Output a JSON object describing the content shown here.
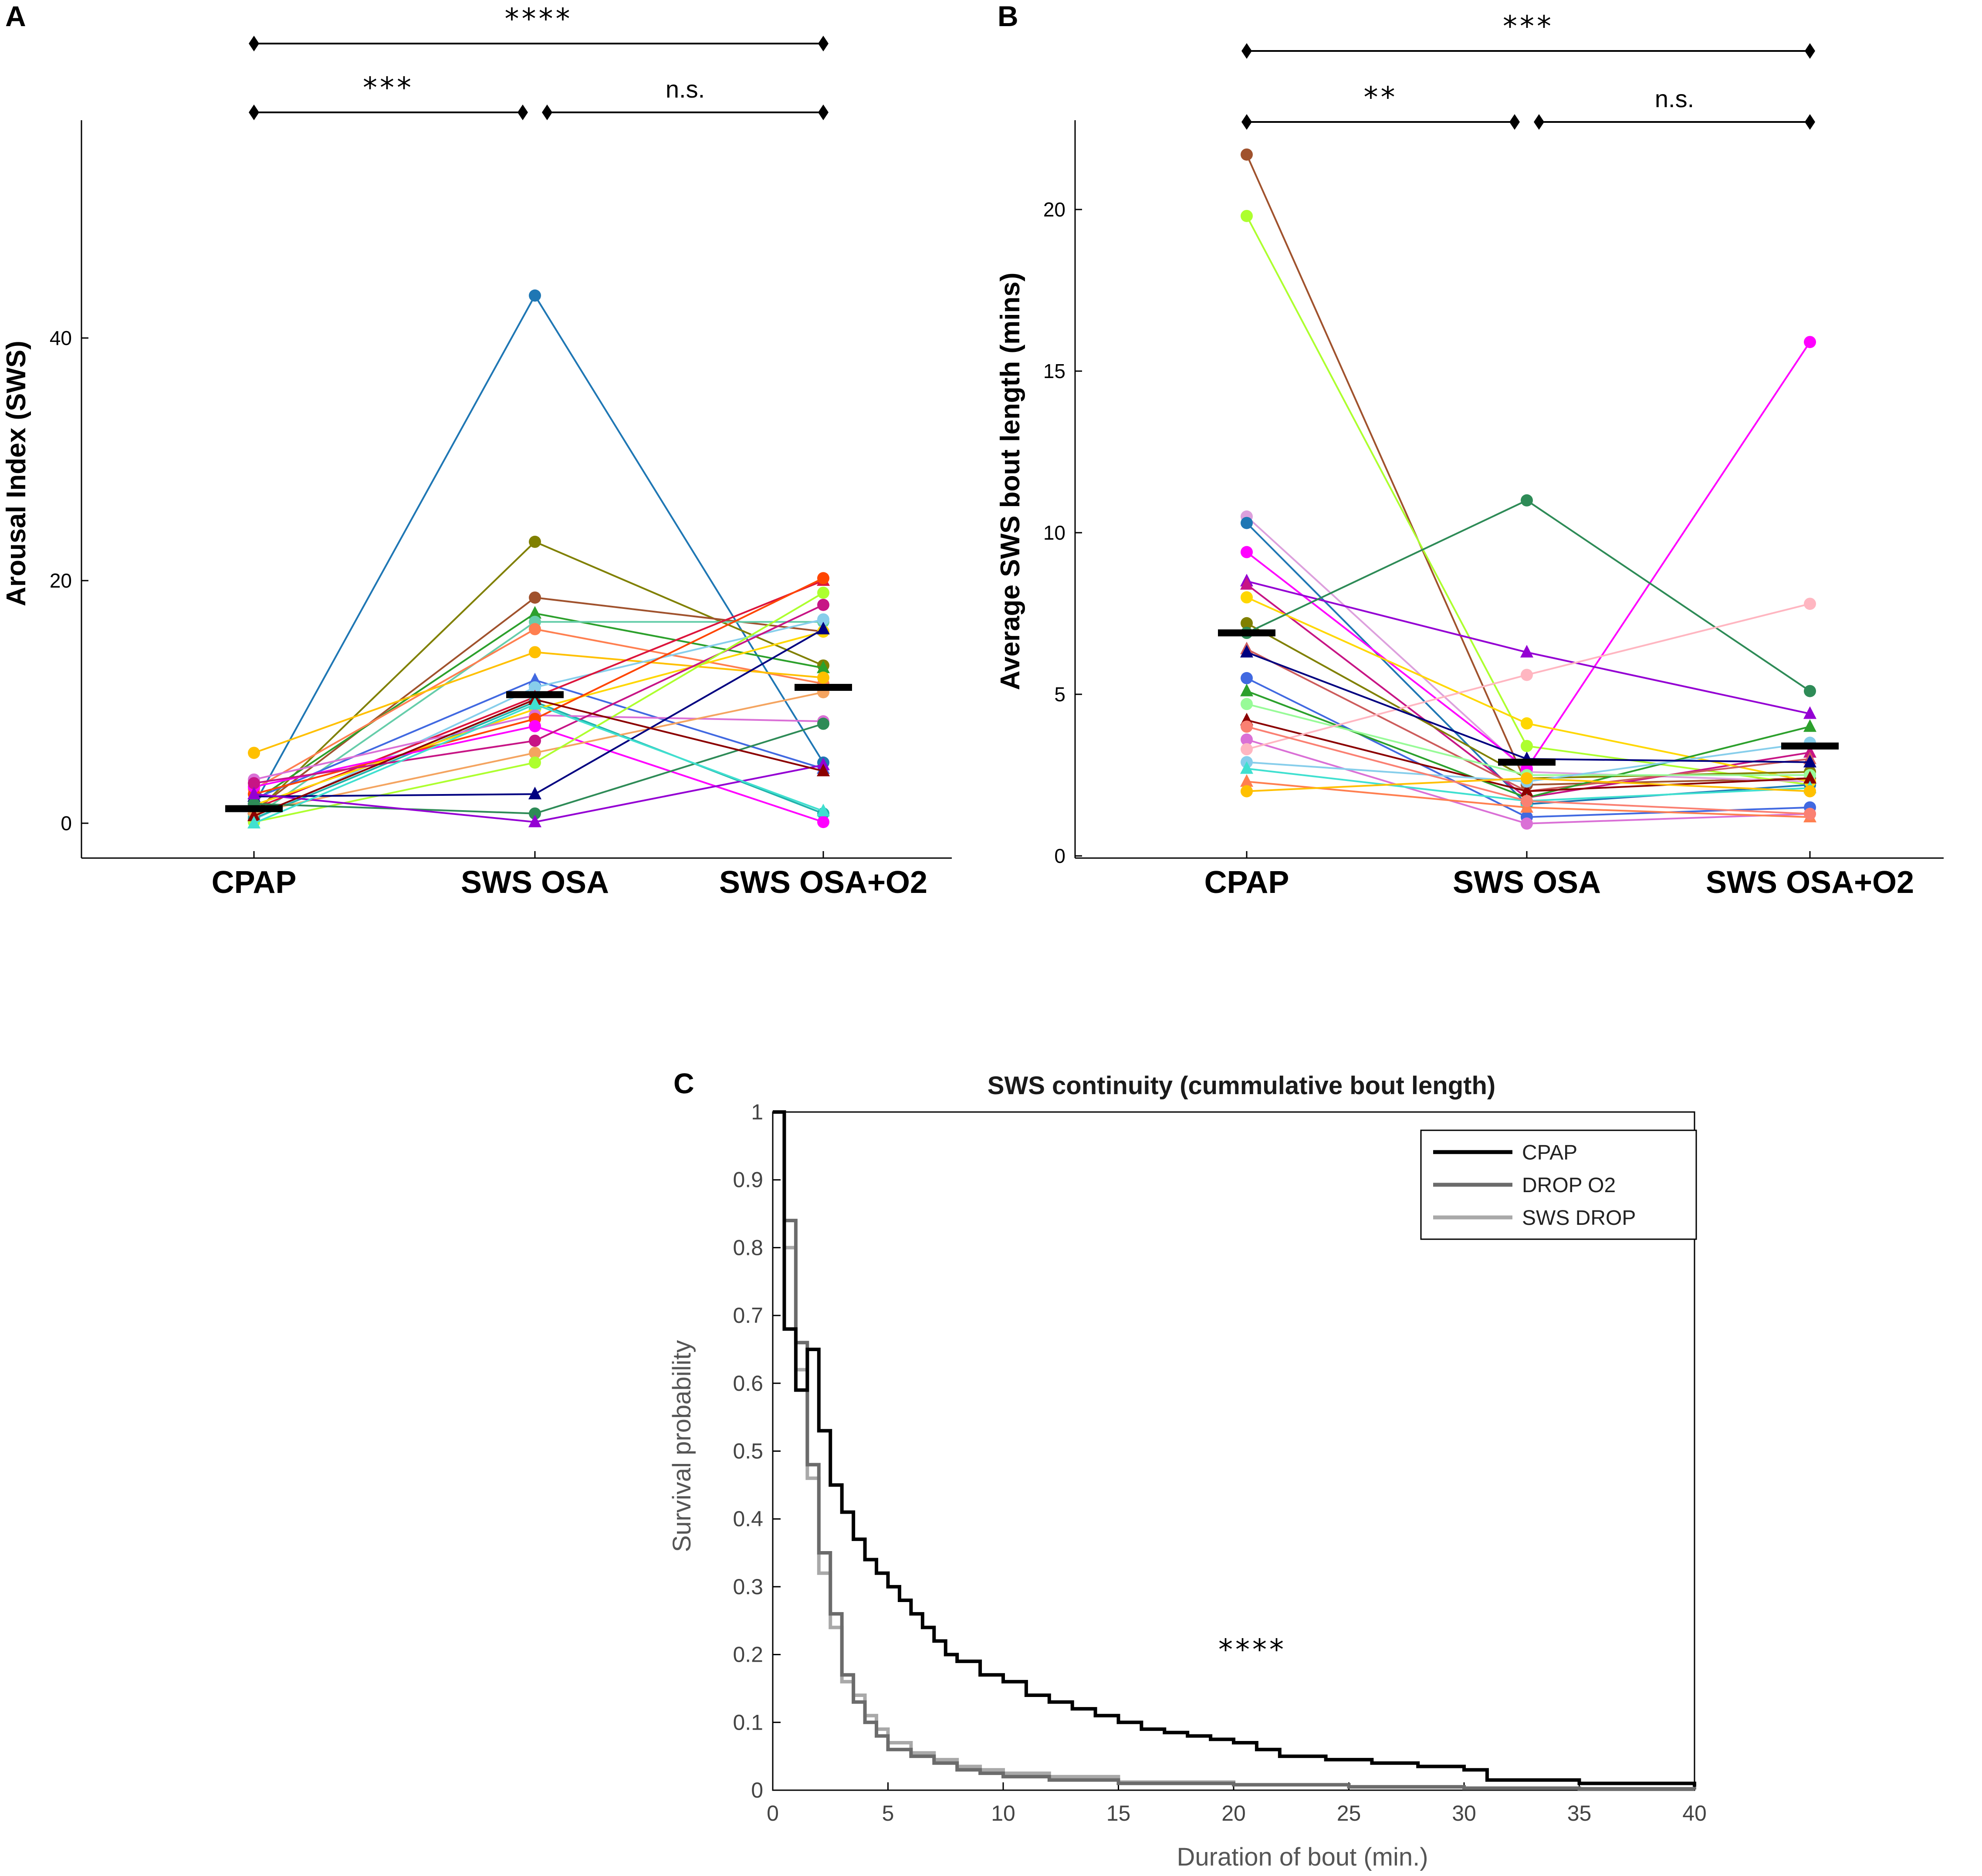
{
  "chart_data": [
    {
      "panel": "A",
      "type": "line",
      "title": "",
      "ylabel": "Arousal Index (SWS)",
      "xlabel": "",
      "categories": [
        "CPAP",
        "SWS OSA",
        "SWS OSA+O2"
      ],
      "yticks": [
        0,
        20,
        40
      ],
      "ylim": [
        -3,
        57
      ],
      "medians": [
        1.2,
        10.6,
        11.2
      ],
      "significance": [
        {
          "from": 0,
          "to": 2,
          "label": "****"
        },
        {
          "from": 0,
          "to": 1,
          "label": "***"
        },
        {
          "from": 1,
          "to": 2,
          "label": "n.s."
        }
      ],
      "series": [
        {
          "color": "#1f77b4",
          "marker": "circle",
          "values": [
            1.5,
            43.5,
            5.0
          ]
        },
        {
          "color": "#808000",
          "marker": "circle",
          "values": [
            0.8,
            23.2,
            13.0
          ]
        },
        {
          "color": "#a0522d",
          "marker": "circle",
          "values": [
            1.0,
            18.6,
            15.8
          ]
        },
        {
          "color": "#2ca02c",
          "marker": "triangle",
          "values": [
            1.8,
            17.3,
            12.8
          ]
        },
        {
          "color": "#66cdaa",
          "marker": "circle",
          "values": [
            0.5,
            16.6,
            16.6
          ]
        },
        {
          "color": "#ff7f50",
          "marker": "circle",
          "values": [
            2.8,
            16.0,
            11.5
          ]
        },
        {
          "color": "#ffc000",
          "marker": "circle",
          "values": [
            5.8,
            14.1,
            12.0
          ]
        },
        {
          "color": "#4169e1",
          "marker": "triangle",
          "values": [
            2.0,
            11.8,
            4.5
          ]
        },
        {
          "color": "#87ceeb",
          "marker": "circle",
          "values": [
            0.3,
            11.2,
            16.8
          ]
        },
        {
          "color": "#dc143c",
          "marker": "triangle",
          "values": [
            1.2,
            10.4,
            20.0
          ]
        },
        {
          "color": "#20b2aa",
          "marker": "circle",
          "values": [
            0.4,
            10.0,
            0.8
          ]
        },
        {
          "color": "#ffd700",
          "marker": "circle",
          "values": [
            1.5,
            9.4,
            15.8
          ]
        },
        {
          "color": "#da70d6",
          "marker": "circle",
          "values": [
            3.6,
            8.9,
            8.4
          ]
        },
        {
          "color": "#ff4500",
          "marker": "circle",
          "values": [
            2.4,
            8.6,
            20.2
          ]
        },
        {
          "color": "#ff00ff",
          "marker": "circle",
          "values": [
            3.0,
            8.0,
            0.1
          ]
        },
        {
          "color": "#c71585",
          "marker": "circle",
          "values": [
            3.3,
            6.8,
            18.0
          ]
        },
        {
          "color": "#f4a460",
          "marker": "circle",
          "values": [
            0.9,
            5.8,
            10.8
          ]
        },
        {
          "color": "#adff2f",
          "marker": "circle",
          "values": [
            0.1,
            5.0,
            19.0
          ]
        },
        {
          "color": "#000080",
          "marker": "triangle",
          "values": [
            2.2,
            2.4,
            16.0
          ]
        },
        {
          "color": "#2e8b57",
          "marker": "circle",
          "values": [
            1.6,
            0.8,
            8.2
          ]
        },
        {
          "color": "#9400d3",
          "marker": "triangle",
          "values": [
            2.4,
            0.1,
            4.8
          ]
        },
        {
          "color": "#8b0000",
          "marker": "triangle",
          "values": [
            0.6,
            10.2,
            4.3
          ]
        },
        {
          "color": "#40e0d0",
          "marker": "triangle",
          "values": [
            0.0,
            9.8,
            1.0
          ]
        }
      ]
    },
    {
      "panel": "B",
      "type": "line",
      "title": "",
      "ylabel": "Average SWS bout length (mins)",
      "xlabel": "",
      "categories": [
        "CPAP",
        "SWS OSA",
        "SWS OSA+O2"
      ],
      "yticks": [
        0,
        5,
        10,
        15,
        20
      ],
      "ylim": [
        0,
        22.7
      ],
      "medians": [
        6.9,
        2.9,
        3.4
      ],
      "significance": [
        {
          "from": 0,
          "to": 2,
          "label": "***"
        },
        {
          "from": 0,
          "to": 1,
          "label": "**"
        },
        {
          "from": 1,
          "to": 2,
          "label": "n.s."
        }
      ],
      "series": [
        {
          "color": "#a0522d",
          "marker": "circle",
          "values": [
            21.7,
            2.2,
            2.4
          ]
        },
        {
          "color": "#adff2f",
          "marker": "circle",
          "values": [
            19.8,
            3.4,
            2.2
          ]
        },
        {
          "color": "#dda0dd",
          "marker": "circle",
          "values": [
            10.5,
            2.6,
            2.3
          ]
        },
        {
          "color": "#1f77b4",
          "marker": "circle",
          "values": [
            10.3,
            1.6,
            2.2
          ]
        },
        {
          "color": "#ff00ff",
          "marker": "circle",
          "values": [
            9.4,
            2.7,
            15.9
          ]
        },
        {
          "color": "#9400d3",
          "marker": "triangle",
          "values": [
            8.5,
            6.3,
            4.4
          ]
        },
        {
          "color": "#c71585",
          "marker": "triangle",
          "values": [
            8.4,
            1.8,
            3.2
          ]
        },
        {
          "color": "#ffd700",
          "marker": "circle",
          "values": [
            8.0,
            4.1,
            2.3
          ]
        },
        {
          "color": "#808000",
          "marker": "circle",
          "values": [
            7.2,
            2.4,
            2.6
          ]
        },
        {
          "color": "#2e8b57",
          "marker": "circle",
          "values": [
            6.9,
            11.0,
            5.1
          ]
        },
        {
          "color": "#cd5c5c",
          "marker": "triangle",
          "values": [
            6.4,
            2.0,
            3.0
          ]
        },
        {
          "color": "#4169e1",
          "marker": "circle",
          "values": [
            5.5,
            1.2,
            1.5
          ]
        },
        {
          "color": "#2ca02c",
          "marker": "triangle",
          "values": [
            5.1,
            1.8,
            4.0
          ]
        },
        {
          "color": "#98fb98",
          "marker": "circle",
          "values": [
            4.7,
            2.5,
            2.5
          ]
        },
        {
          "color": "#8b0000",
          "marker": "triangle",
          "values": [
            4.2,
            2.0,
            2.4
          ]
        },
        {
          "color": "#da70d6",
          "marker": "circle",
          "values": [
            3.6,
            1.0,
            1.3
          ]
        },
        {
          "color": "#ffb6c1",
          "marker": "circle",
          "values": [
            3.3,
            5.6,
            7.8
          ]
        },
        {
          "color": "#87ceeb",
          "marker": "circle",
          "values": [
            2.9,
            2.3,
            3.5
          ]
        },
        {
          "color": "#40e0d0",
          "marker": "triangle",
          "values": [
            2.7,
            1.7,
            2.1
          ]
        },
        {
          "color": "#ff7f50",
          "marker": "triangle",
          "values": [
            2.3,
            1.5,
            1.2
          ]
        },
        {
          "color": "#ffc000",
          "marker": "circle",
          "values": [
            2.0,
            2.4,
            2.0
          ]
        },
        {
          "color": "#000080",
          "marker": "triangle",
          "values": [
            6.3,
            3.0,
            2.9
          ]
        },
        {
          "color": "#fa8072",
          "marker": "circle",
          "values": [
            4.0,
            1.7,
            1.3
          ]
        }
      ]
    },
    {
      "panel": "C",
      "type": "line",
      "step": true,
      "title": "SWS continuity (cummulative bout length)",
      "xlabel": "Duration of bout (min.)",
      "ylabel": "Survival probability",
      "xlim": [
        0,
        40
      ],
      "ylim": [
        0,
        1
      ],
      "xticks": [
        0,
        5,
        10,
        15,
        20,
        25,
        30,
        35,
        40
      ],
      "yticks": [
        0,
        0.1,
        0.2,
        0.3,
        0.4,
        0.5,
        0.6,
        0.7,
        0.8,
        0.9,
        1
      ],
      "ytick_labels": [
        "0",
        "0.1",
        "0.2",
        "0.3",
        "0.4",
        "0.5",
        "0.6",
        "0.7",
        "0.8",
        "0.9",
        "1"
      ],
      "annotation": "****",
      "legend_position": "top-right",
      "series": [
        {
          "name": "CPAP",
          "color": "#000000",
          "x": [
            0,
            0.5,
            1.0,
            1.5,
            2.0,
            2.5,
            3.0,
            3.5,
            4.0,
            4.5,
            5.0,
            5.5,
            6.0,
            6.5,
            7.0,
            7.5,
            8.0,
            9.0,
            10.0,
            11.0,
            12.0,
            13.0,
            14.0,
            15.0,
            16.0,
            17.0,
            18.0,
            19.0,
            20.0,
            21.0,
            22.0,
            24.0,
            26.0,
            28.0,
            30.0,
            31.0,
            35.0,
            40.0
          ],
          "y": [
            1.0,
            0.68,
            0.59,
            0.65,
            0.53,
            0.45,
            0.41,
            0.37,
            0.34,
            0.32,
            0.3,
            0.28,
            0.26,
            0.24,
            0.22,
            0.2,
            0.19,
            0.17,
            0.16,
            0.14,
            0.13,
            0.12,
            0.11,
            0.1,
            0.09,
            0.085,
            0.08,
            0.075,
            0.07,
            0.06,
            0.05,
            0.045,
            0.04,
            0.035,
            0.03,
            0.015,
            0.01,
            0.005
          ]
        },
        {
          "name": "DROP O2",
          "color": "#6b6b6b",
          "x": [
            0,
            0.5,
            1.0,
            1.5,
            2.0,
            2.5,
            3.0,
            3.5,
            4.0,
            4.5,
            5.0,
            6.0,
            7.0,
            8.0,
            9.0,
            10.0,
            12.0,
            15.0,
            20.0,
            25.0,
            30.0,
            35.0,
            40.0
          ],
          "y": [
            1.0,
            0.84,
            0.66,
            0.48,
            0.35,
            0.26,
            0.17,
            0.13,
            0.1,
            0.08,
            0.06,
            0.05,
            0.04,
            0.03,
            0.025,
            0.02,
            0.015,
            0.01,
            0.008,
            0.005,
            0.003,
            0.002,
            0.001
          ]
        },
        {
          "name": "SWS DROP",
          "color": "#a9a9a9",
          "x": [
            0,
            0.5,
            1.0,
            1.5,
            2.0,
            2.5,
            3.0,
            3.5,
            4.0,
            4.5,
            5.0,
            6.0,
            7.0,
            8.0,
            9.0,
            10.0,
            12.0,
            15.0,
            20.0,
            25.0,
            30.0,
            35.0,
            40.0
          ],
          "y": [
            1.0,
            0.8,
            0.62,
            0.46,
            0.32,
            0.24,
            0.16,
            0.14,
            0.11,
            0.09,
            0.07,
            0.055,
            0.045,
            0.035,
            0.03,
            0.025,
            0.02,
            0.012,
            0.008,
            0.005,
            0.003,
            0.002,
            0.001
          ]
        }
      ]
    }
  ]
}
